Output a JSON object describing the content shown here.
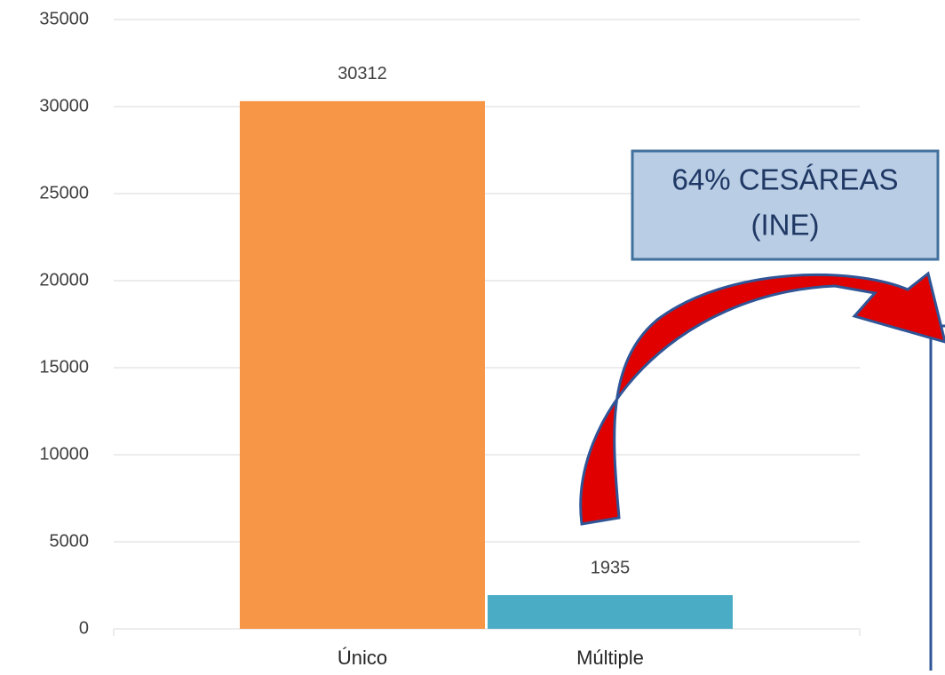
{
  "chart_data": {
    "type": "bar",
    "categories": [
      "Único",
      "Múltiple"
    ],
    "series": [
      {
        "values": [
          30312,
          1935
        ],
        "colors": [
          "#f79646",
          "#4bacc6"
        ]
      }
    ],
    "ylim": [
      0,
      35000
    ],
    "yticks": [
      0,
      5000,
      10000,
      15000,
      20000,
      25000,
      30000,
      35000
    ],
    "grid": true,
    "annotation": [
      "64% CESÁREAS",
      "(INE)"
    ]
  }
}
